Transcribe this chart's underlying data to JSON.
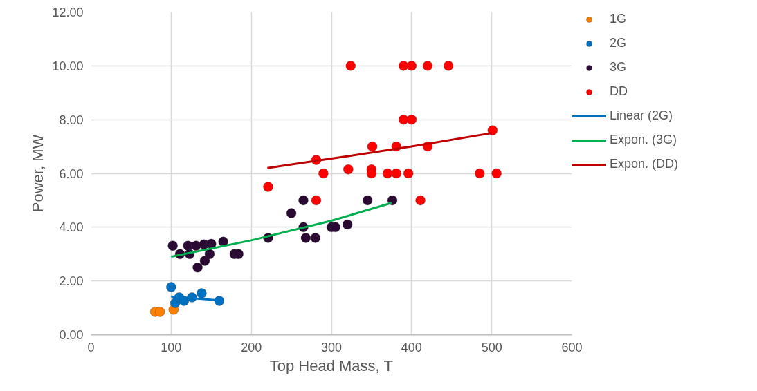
{
  "chart_data": {
    "type": "scatter",
    "xlabel": "Top Head Mass, T",
    "ylabel": "Power, MW",
    "xlim": [
      0,
      600
    ],
    "xticks": [
      0,
      100,
      200,
      300,
      400,
      500,
      600
    ],
    "ylim": [
      0,
      12
    ],
    "yticks": [
      {
        "value": 0,
        "label": "0.00"
      },
      {
        "value": 2,
        "label": "2.00"
      },
      {
        "value": 4,
        "label": "4.00"
      },
      {
        "value": 6,
        "label": "6.00"
      },
      {
        "value": 8,
        "label": "8.00"
      },
      {
        "value": 10,
        "label": "10.00"
      },
      {
        "value": 12,
        "label": "12.00"
      }
    ],
    "grid": true,
    "legend": "right",
    "marker": "circle",
    "series": [
      {
        "name": "1G",
        "color": "#ff8000",
        "x": [
          80,
          86,
          103
        ],
        "values": [
          0.85,
          0.85,
          0.93
        ]
      },
      {
        "name": "2G",
        "color": "#0070c0",
        "x": [
          100,
          105,
          110,
          116,
          126,
          138,
          160
        ],
        "values": [
          1.77,
          1.18,
          1.39,
          1.26,
          1.39,
          1.54,
          1.26
        ]
      },
      {
        "name": "3G",
        "color": "#2a0a33",
        "x": [
          102,
          111,
          121,
          123,
          131,
          141,
          142,
          133,
          150,
          148,
          165,
          179,
          184,
          221,
          250,
          265,
          265,
          268,
          280,
          300,
          305,
          320,
          345,
          376
        ],
        "values": [
          3.31,
          3.0,
          3.31,
          3.0,
          3.31,
          3.36,
          2.75,
          2.5,
          3.38,
          3.0,
          3.46,
          3.0,
          3.0,
          3.6,
          4.52,
          5.0,
          4.0,
          3.6,
          3.6,
          4.0,
          4.0,
          4.1,
          5.0,
          5.0
        ]
      },
      {
        "name": "DD",
        "color": "#ff0000",
        "x": [
          221,
          281,
          281,
          290,
          321,
          351,
          350,
          350,
          324,
          390,
          400,
          420,
          446,
          390,
          400,
          501,
          381,
          420,
          370,
          381,
          396,
          485,
          506,
          411
        ],
        "values": [
          5.5,
          5.0,
          6.5,
          6.0,
          6.15,
          7.0,
          6.15,
          6.0,
          10,
          10,
          10,
          10,
          10,
          8,
          8,
          7.6,
          7.0,
          7.0,
          6.0,
          6.0,
          6.0,
          6.0,
          6.0,
          5.0
        ]
      },
      {
        "name": "Linear (2G)",
        "type": "line",
        "marker": "none",
        "line_style": "solid",
        "color": "#0070c0",
        "x": [
          100,
          160
        ],
        "values": [
          1.42,
          1.28
        ]
      },
      {
        "name": "Expon. (3G)",
        "type": "line",
        "marker": "none",
        "line_style": "solid",
        "color": "#00b050",
        "x": [
          100,
          200,
          300,
          375
        ],
        "values": [
          2.9,
          3.51,
          4.24,
          4.9
        ]
      },
      {
        "name": "Expon. (DD)",
        "type": "line",
        "marker": "none",
        "line_style": "solid",
        "color": "#c00000",
        "x": [
          220,
          300,
          400,
          500
        ],
        "values": [
          6.2,
          6.55,
          7.0,
          7.5
        ]
      }
    ]
  }
}
